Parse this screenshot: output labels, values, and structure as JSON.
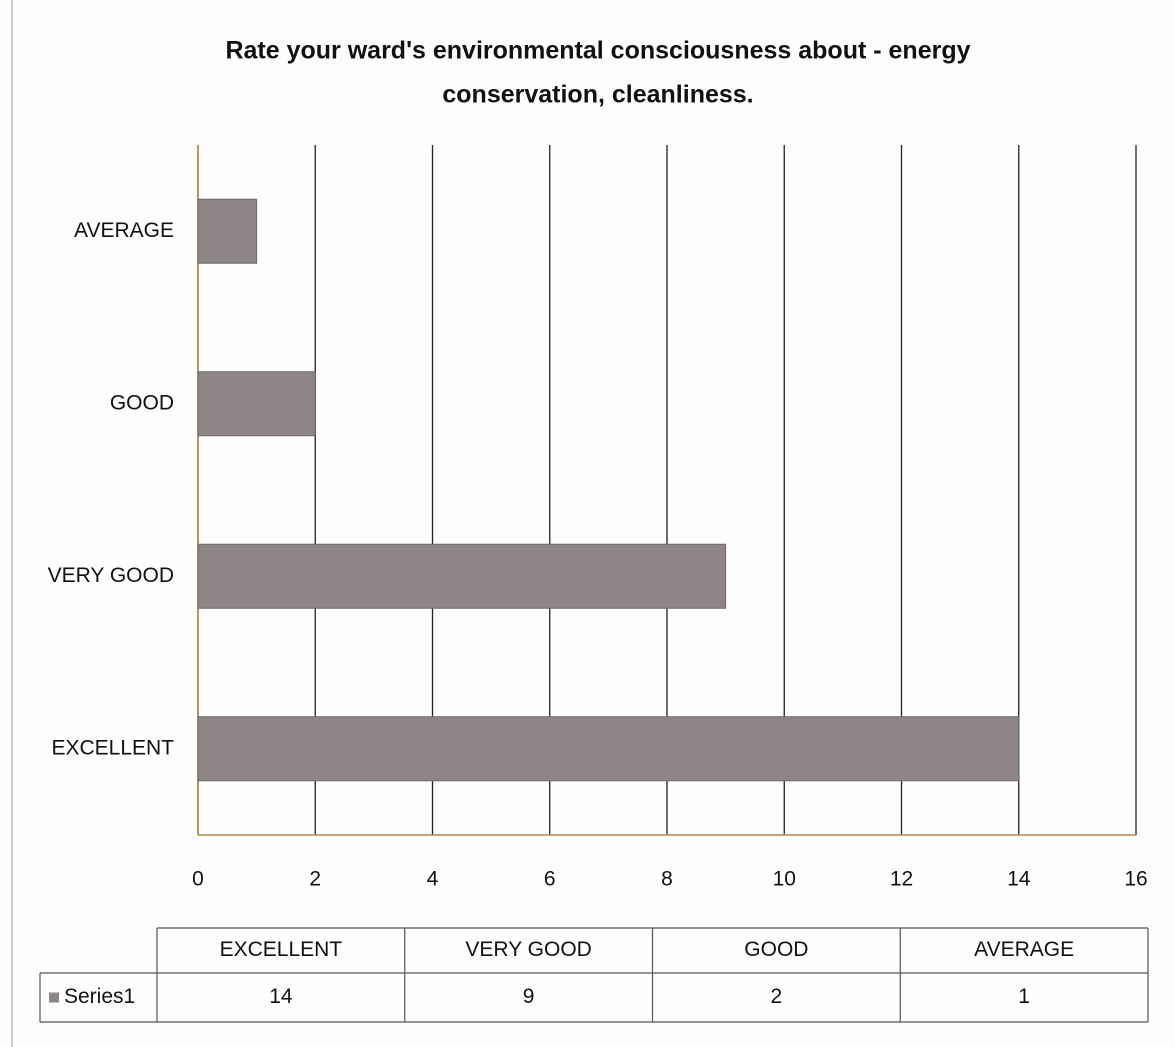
{
  "chart_data": {
    "type": "bar",
    "orientation": "horizontal",
    "title": "Rate your ward's environmental consciousness about - energy conservation, cleanliness.",
    "categories": [
      "EXCELLENT",
      "VERY GOOD",
      "GOOD",
      "AVERAGE"
    ],
    "series": [
      {
        "name": "Series1",
        "color": "#8e8686",
        "values": [
          14,
          9,
          2,
          1
        ]
      }
    ],
    "xlim": [
      0,
      16
    ],
    "xticks": [
      0,
      2,
      4,
      6,
      8,
      10,
      12,
      14,
      16
    ],
    "grid": true,
    "data_table": true
  }
}
